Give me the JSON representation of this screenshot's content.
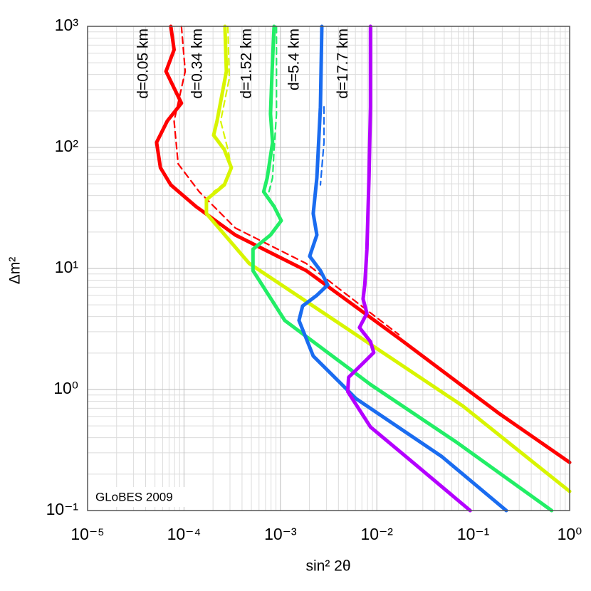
{
  "chart_data": {
    "type": "line",
    "xlabel": "sin² 2θ",
    "ylabel": "Δm²",
    "annotation": "GLoBES 2009",
    "log_x": true,
    "log_y": true,
    "grid": true,
    "xlim": [
      1e-05,
      1
    ],
    "ylim": [
      0.1,
      1000
    ],
    "xticks": [
      {
        "value": 1e-05,
        "label": "10⁻⁵"
      },
      {
        "value": 0.0001,
        "label": "10⁻⁴"
      },
      {
        "value": 0.001,
        "label": "10⁻³"
      },
      {
        "value": 0.01,
        "label": "10⁻²"
      },
      {
        "value": 0.1,
        "label": "10⁻¹"
      },
      {
        "value": 1,
        "label": "10⁰"
      }
    ],
    "yticks": [
      {
        "value": 0.1,
        "label": "10⁻¹"
      },
      {
        "value": 1,
        "label": "10⁰"
      },
      {
        "value": 10,
        "label": "10¹"
      },
      {
        "value": 100,
        "label": "10²"
      },
      {
        "value": 1000,
        "label": "10³"
      }
    ],
    "xminorticks": [
      2e-05,
      3e-05,
      4e-05,
      5e-05,
      6e-05,
      7e-05,
      8e-05,
      9e-05,
      0.0002,
      0.0003,
      0.0004,
      0.0005,
      0.0006,
      0.0007,
      0.0008,
      0.0009,
      0.002,
      0.003,
      0.004,
      0.005,
      0.006,
      0.007,
      0.008,
      0.009,
      0.02,
      0.03,
      0.04,
      0.05,
      0.06,
      0.07,
      0.08,
      0.09,
      0.2,
      0.3,
      0.4,
      0.5,
      0.6,
      0.7,
      0.8,
      0.9
    ],
    "yminorticks": [
      0.2,
      0.3,
      0.4,
      0.5,
      0.6,
      0.7,
      0.8,
      0.9,
      2,
      3,
      4,
      5,
      6,
      7,
      8,
      9,
      20,
      30,
      40,
      50,
      60,
      70,
      80,
      90,
      200,
      300,
      400,
      500,
      600,
      700,
      800,
      900
    ],
    "series": [
      {
        "name": "d=0.05 km",
        "color": "#ff0000",
        "dashed": false,
        "x": [
          7.3e-05,
          7.9e-05,
          6.5e-05,
          9.4e-05,
          6.7e-05,
          5.2e-05,
          5.7e-05,
          7.3e-05,
          0.000133,
          0.00034,
          0.00185,
          0.0169,
          0.182,
          1.0
        ],
        "values": [
          1000,
          640,
          425,
          232,
          165,
          110,
          68,
          49,
          32.5,
          18.9,
          9.6,
          2.65,
          0.64,
          0.25
        ]
      },
      {
        "color": "#ff0000",
        "dashed": true,
        "x": [
          9.4e-05,
          0.000103,
          7.9e-05,
          8.7e-05,
          0.000144,
          0.00034,
          0.00185,
          0.0169
        ],
        "values": [
          1000,
          425,
          165,
          73,
          43,
          21.6,
          11,
          2.84
        ]
      },
      {
        "name": "d=0.34 km",
        "color": "#d8f500",
        "dashed": false,
        "x": [
          0.000266,
          0.000275,
          0.00022,
          0.000203,
          0.000262,
          0.00031,
          0.000262,
          0.000171,
          0.000171,
          0.000475,
          0.00366,
          0.078,
          1.0
        ],
        "values": [
          1000,
          425,
          165,
          126,
          96,
          68,
          49,
          37,
          28.4,
          11,
          3.72,
          0.73,
          0.144
        ]
      },
      {
        "color": "#d8f500",
        "dashed": true,
        "x": [
          0.000285,
          0.000295,
          0.00024,
          0.000285,
          0.00031,
          0.000275,
          0.000203
        ],
        "values": [
          1000,
          372,
          165,
          96,
          68,
          52,
          43
        ]
      },
      {
        "name": "d=1.52 km",
        "color": "#22ee66",
        "dashed": false,
        "x": [
          0.00086,
          0.00082,
          0.00079,
          0.00083,
          0.00073,
          0.00067,
          0.00086,
          0.00102,
          0.00079,
          0.00052,
          0.00052,
          0.00111,
          0.0086,
          0.066,
          0.65
        ],
        "values": [
          1000,
          425,
          189,
          110,
          56,
          43,
          32.5,
          24.8,
          18.9,
          14.4,
          9.6,
          3.72,
          1.1,
          0.37,
          0.1
        ]
      },
      {
        "color": "#22ee66",
        "dashed": true,
        "x": [
          0.00091,
          0.00091,
          0.00086,
          0.00083,
          0.00076
        ],
        "values": [
          1000,
          189,
          96,
          56,
          43
        ]
      },
      {
        "name": "d=5.4 km",
        "color": "#1a6cf0",
        "dashed": false,
        "x": [
          0.00269,
          0.0026,
          0.00239,
          0.00219,
          0.00239,
          0.00201,
          0.0026,
          0.0031,
          0.00239,
          0.0017,
          0.00156,
          0.00219,
          0.0061,
          0.047,
          0.22
        ],
        "values": [
          1000,
          216,
          56,
          28.4,
          18.9,
          12.6,
          9.6,
          7.3,
          6.0,
          4.9,
          3.72,
          1.89,
          0.84,
          0.28,
          0.1
        ]
      },
      {
        "color": "#1a6cf0",
        "dashed": true,
        "x": [
          0.00283,
          0.00283,
          0.0026
        ],
        "values": [
          216,
          110,
          49
        ]
      },
      {
        "name": "d=17.7 km",
        "color": "#b400ff",
        "dashed": false,
        "x": [
          0.0086,
          0.0086,
          0.0083,
          0.0079,
          0.0075,
          0.0072,
          0.0079,
          0.0066,
          0.0086,
          0.0093,
          0.0072,
          0.0051,
          0.005,
          0.0086,
          0.0237,
          0.093
        ],
        "values": [
          1000,
          216,
          56,
          14.4,
          7.3,
          5.6,
          4.26,
          3.25,
          2.48,
          2.02,
          1.65,
          1.26,
          0.96,
          0.49,
          0.25,
          0.1
        ]
      }
    ]
  }
}
